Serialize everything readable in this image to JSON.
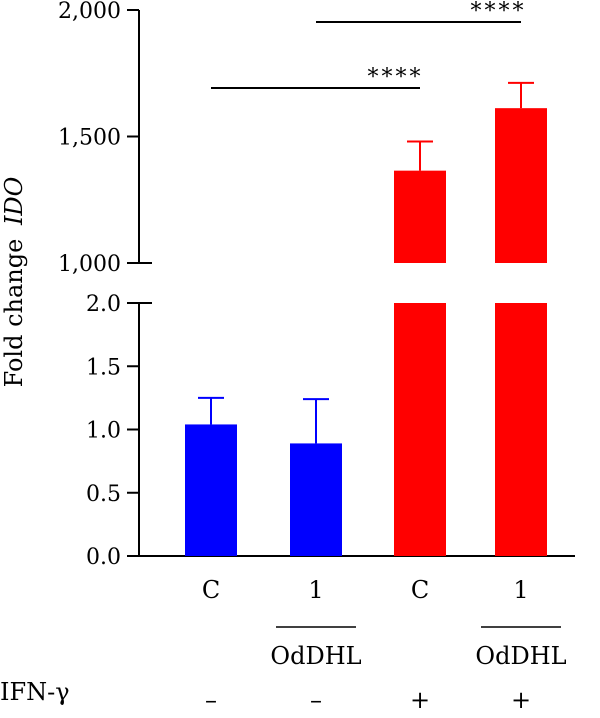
{
  "chart_data": {
    "type": "bar",
    "ylabel_prefix": "Fold change",
    "ylabel_gene": "IDO",
    "axis_break": true,
    "lower_segment": {
      "ylim": [
        0.0,
        2.0
      ],
      "ticks": [
        "0.0",
        "0.5",
        "1.0",
        "1.5",
        "2.0"
      ]
    },
    "upper_segment": {
      "ylim": [
        1000,
        2000
      ],
      "ticks": [
        "1,000",
        "1,500",
        "2,000"
      ]
    },
    "categories": [
      "C",
      "1",
      "C",
      "1"
    ],
    "treatment_group_label": "OdDHL",
    "treatment_group_indices": [
      1,
      3
    ],
    "ifn_row_label": "IFN-γ",
    "ifn_values": [
      "–",
      "–",
      "+",
      "+"
    ],
    "values": [
      1.04,
      0.89,
      1365,
      1612
    ],
    "errors": [
      0.21,
      0.35,
      115,
      100
    ],
    "colors": [
      "#0000ff",
      "#0000ff",
      "#ff0000",
      "#ff0000"
    ],
    "significance": [
      {
        "from": 0,
        "to": 2,
        "label": "****"
      },
      {
        "from": 1,
        "to": 3,
        "label": "****"
      }
    ]
  }
}
